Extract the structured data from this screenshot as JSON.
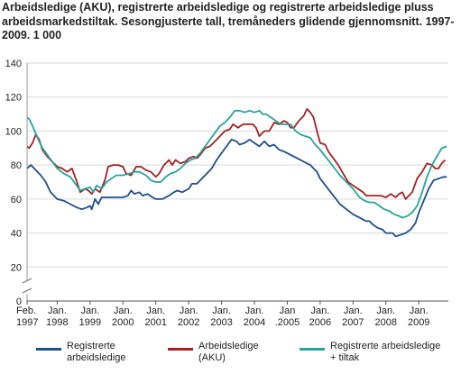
{
  "chart_data": {
    "type": "line",
    "title": "Arbeidsledige (AKU), registrerte arbeidsledige og registrerte arbeidsledige pluss arbeidsmarkedstiltak. Sesongjusterte tall, tremåneders glidende gjennomsnitt. 1997-2009. 1 000",
    "ylim": [
      0,
      140
    ],
    "yticks": [
      0,
      20,
      40,
      60,
      80,
      100,
      120,
      140
    ],
    "xlim": [
      1997.083,
      2009.9
    ],
    "xticks": [
      {
        "x": 1997.083,
        "line1": "Feb.",
        "line2": "1997"
      },
      {
        "x": 1998,
        "line1": "Jan.",
        "line2": "1998"
      },
      {
        "x": 1999,
        "line1": "Jan.",
        "line2": "1999"
      },
      {
        "x": 2000,
        "line1": "Jan.",
        "line2": "2000"
      },
      {
        "x": 2001,
        "line1": "Jan.",
        "line2": "2001"
      },
      {
        "x": 2002,
        "line1": "Jan.",
        "line2": "2002"
      },
      {
        "x": 2003,
        "line1": "Jan.",
        "line2": "2003"
      },
      {
        "x": 2004,
        "line1": "Jan.",
        "line2": "2004"
      },
      {
        "x": 2005,
        "line1": "Jan",
        "line2": ".2005"
      },
      {
        "x": 2006,
        "line1": "Jan.",
        "line2": "2006"
      },
      {
        "x": 2007,
        "line1": "Jan.",
        "line2": "2007"
      },
      {
        "x": 2008,
        "line1": "Jan.",
        "line2": "2008"
      },
      {
        "x": 2009,
        "line1": "Jan.",
        "line2": "2009"
      }
    ],
    "grid": true,
    "legend_position": "bottom",
    "series": [
      {
        "name_line1": "Registrerte",
        "name_line2": "arbeidsledige",
        "color": "#1f4e8c",
        "points": [
          [
            1997.083,
            78
          ],
          [
            1997.2,
            80
          ],
          [
            1997.35,
            77
          ],
          [
            1997.5,
            74
          ],
          [
            1997.65,
            70
          ],
          [
            1997.8,
            64
          ],
          [
            1998.0,
            60
          ],
          [
            1998.2,
            59
          ],
          [
            1998.4,
            57
          ],
          [
            1998.6,
            55
          ],
          [
            1998.75,
            54
          ],
          [
            1998.9,
            55
          ],
          [
            1999.0,
            56
          ],
          [
            1999.05,
            54
          ],
          [
            1999.15,
            60
          ],
          [
            1999.25,
            57
          ],
          [
            1999.35,
            61
          ],
          [
            1999.5,
            61
          ],
          [
            1999.7,
            61
          ],
          [
            1999.9,
            61
          ],
          [
            2000.0,
            61
          ],
          [
            2000.15,
            62
          ],
          [
            2000.25,
            65
          ],
          [
            2000.35,
            63
          ],
          [
            2000.5,
            64
          ],
          [
            2000.6,
            62
          ],
          [
            2000.75,
            63
          ],
          [
            2000.9,
            61
          ],
          [
            2001.0,
            60
          ],
          [
            2001.2,
            60
          ],
          [
            2001.4,
            62
          ],
          [
            2001.55,
            64
          ],
          [
            2001.65,
            65
          ],
          [
            2001.8,
            64
          ],
          [
            2002.0,
            66
          ],
          [
            2002.1,
            69
          ],
          [
            2002.25,
            69
          ],
          [
            2002.4,
            72
          ],
          [
            2002.55,
            75
          ],
          [
            2002.7,
            78
          ],
          [
            2002.85,
            83
          ],
          [
            2003.0,
            87
          ],
          [
            2003.15,
            91
          ],
          [
            2003.3,
            95
          ],
          [
            2003.45,
            94
          ],
          [
            2003.55,
            92
          ],
          [
            2003.7,
            93
          ],
          [
            2003.85,
            95
          ],
          [
            2004.0,
            93
          ],
          [
            2004.15,
            91
          ],
          [
            2004.3,
            94
          ],
          [
            2004.45,
            91
          ],
          [
            2004.6,
            92
          ],
          [
            2004.75,
            89
          ],
          [
            2004.9,
            88
          ],
          [
            2005.1,
            86
          ],
          [
            2005.3,
            84
          ],
          [
            2005.5,
            82
          ],
          [
            2005.7,
            80
          ],
          [
            2005.9,
            76
          ],
          [
            2006.0,
            72
          ],
          [
            2006.2,
            67
          ],
          [
            2006.4,
            62
          ],
          [
            2006.6,
            57
          ],
          [
            2006.8,
            54
          ],
          [
            2007.0,
            51
          ],
          [
            2007.2,
            49
          ],
          [
            2007.4,
            47
          ],
          [
            2007.5,
            47
          ],
          [
            2007.6,
            45
          ],
          [
            2007.75,
            43
          ],
          [
            2007.9,
            42
          ],
          [
            2008.0,
            40
          ],
          [
            2008.1,
            40
          ],
          [
            2008.2,
            40
          ],
          [
            2008.3,
            38
          ],
          [
            2008.45,
            39
          ],
          [
            2008.6,
            40
          ],
          [
            2008.75,
            42
          ],
          [
            2008.9,
            46
          ],
          [
            2009.0,
            52
          ],
          [
            2009.15,
            59
          ],
          [
            2009.3,
            66
          ],
          [
            2009.45,
            71
          ],
          [
            2009.6,
            72
          ],
          [
            2009.75,
            73
          ],
          [
            2009.85,
            73
          ]
        ]
      },
      {
        "name_line1": "Arbeidsledige",
        "name_line2": "(AKU)",
        "color": "#a32121",
        "points": [
          [
            1997.083,
            91
          ],
          [
            1997.15,
            90
          ],
          [
            1997.25,
            93
          ],
          [
            1997.35,
            98
          ],
          [
            1997.45,
            95
          ],
          [
            1997.55,
            89
          ],
          [
            1997.7,
            85
          ],
          [
            1997.85,
            82
          ],
          [
            1998.0,
            79
          ],
          [
            1998.15,
            78
          ],
          [
            1998.3,
            76
          ],
          [
            1998.45,
            78
          ],
          [
            1998.6,
            70
          ],
          [
            1998.7,
            64
          ],
          [
            1998.85,
            66
          ],
          [
            1998.95,
            65
          ],
          [
            1999.05,
            63
          ],
          [
            1999.15,
            66
          ],
          [
            1999.3,
            64
          ],
          [
            1999.45,
            71
          ],
          [
            1999.55,
            79
          ],
          [
            1999.7,
            80
          ],
          [
            1999.85,
            80
          ],
          [
            2000.0,
            79
          ],
          [
            2000.1,
            75
          ],
          [
            2000.25,
            74
          ],
          [
            2000.4,
            79
          ],
          [
            2000.55,
            79
          ],
          [
            2000.7,
            77
          ],
          [
            2000.85,
            76
          ],
          [
            2001.0,
            73
          ],
          [
            2001.1,
            75
          ],
          [
            2001.25,
            80
          ],
          [
            2001.4,
            83
          ],
          [
            2001.5,
            80
          ],
          [
            2001.6,
            83
          ],
          [
            2001.75,
            81
          ],
          [
            2001.9,
            82
          ],
          [
            2002.0,
            84
          ],
          [
            2002.15,
            85
          ],
          [
            2002.25,
            84
          ],
          [
            2002.35,
            86
          ],
          [
            2002.5,
            90
          ],
          [
            2002.65,
            91
          ],
          [
            2002.8,
            94
          ],
          [
            2002.95,
            97
          ],
          [
            2003.1,
            100
          ],
          [
            2003.25,
            101
          ],
          [
            2003.35,
            104
          ],
          [
            2003.5,
            102
          ],
          [
            2003.65,
            104
          ],
          [
            2003.8,
            104
          ],
          [
            2003.95,
            104
          ],
          [
            2004.05,
            102
          ],
          [
            2004.15,
            97
          ],
          [
            2004.3,
            100
          ],
          [
            2004.45,
            100
          ],
          [
            2004.6,
            105
          ],
          [
            2004.75,
            104
          ],
          [
            2004.9,
            106
          ],
          [
            2005.0,
            105
          ],
          [
            2005.1,
            102
          ],
          [
            2005.2,
            102
          ],
          [
            2005.35,
            106
          ],
          [
            2005.5,
            109
          ],
          [
            2005.6,
            113
          ],
          [
            2005.7,
            111
          ],
          [
            2005.8,
            108
          ],
          [
            2005.9,
            100
          ],
          [
            2006.0,
            93
          ],
          [
            2006.15,
            92
          ],
          [
            2006.25,
            88
          ],
          [
            2006.4,
            84
          ],
          [
            2006.55,
            80
          ],
          [
            2006.7,
            75
          ],
          [
            2006.85,
            70
          ],
          [
            2007.0,
            68
          ],
          [
            2007.15,
            66
          ],
          [
            2007.3,
            64
          ],
          [
            2007.4,
            62
          ],
          [
            2007.55,
            62
          ],
          [
            2007.7,
            62
          ],
          [
            2007.85,
            62
          ],
          [
            2008.0,
            61
          ],
          [
            2008.15,
            63
          ],
          [
            2008.3,
            61
          ],
          [
            2008.4,
            63
          ],
          [
            2008.5,
            64
          ],
          [
            2008.6,
            60
          ],
          [
            2008.7,
            62
          ],
          [
            2008.8,
            64
          ],
          [
            2008.95,
            72
          ],
          [
            2009.1,
            76
          ],
          [
            2009.25,
            81
          ],
          [
            2009.4,
            80
          ],
          [
            2009.5,
            78
          ],
          [
            2009.6,
            78
          ],
          [
            2009.7,
            81
          ],
          [
            2009.8,
            83
          ]
        ]
      },
      {
        "name_line1": "Registrerte arbeidsledige",
        "name_line2": "+ tiltak",
        "color": "#27a39a",
        "points": [
          [
            1997.083,
            108
          ],
          [
            1997.15,
            107
          ],
          [
            1997.25,
            103
          ],
          [
            1997.4,
            96
          ],
          [
            1997.55,
            90
          ],
          [
            1997.7,
            86
          ],
          [
            1997.85,
            82
          ],
          [
            1998.0,
            78
          ],
          [
            1998.2,
            75
          ],
          [
            1998.4,
            73
          ],
          [
            1998.55,
            69
          ],
          [
            1998.7,
            65
          ],
          [
            1998.85,
            66
          ],
          [
            1999.0,
            67
          ],
          [
            1999.1,
            64
          ],
          [
            1999.2,
            68
          ],
          [
            1999.35,
            66
          ],
          [
            1999.5,
            70
          ],
          [
            1999.65,
            72
          ],
          [
            1999.8,
            74
          ],
          [
            2000.0,
            74
          ],
          [
            2000.2,
            75
          ],
          [
            2000.35,
            76
          ],
          [
            2000.5,
            76
          ],
          [
            2000.7,
            74
          ],
          [
            2000.85,
            71
          ],
          [
            2001.0,
            70
          ],
          [
            2001.15,
            70
          ],
          [
            2001.3,
            73
          ],
          [
            2001.45,
            75
          ],
          [
            2001.6,
            76
          ],
          [
            2001.75,
            78
          ],
          [
            2001.9,
            81
          ],
          [
            2002.05,
            83
          ],
          [
            2002.2,
            84
          ],
          [
            2002.35,
            87
          ],
          [
            2002.5,
            91
          ],
          [
            2002.65,
            95
          ],
          [
            2002.8,
            99
          ],
          [
            2002.95,
            103
          ],
          [
            2003.1,
            105
          ],
          [
            2003.25,
            108
          ],
          [
            2003.4,
            112
          ],
          [
            2003.55,
            112
          ],
          [
            2003.7,
            111
          ],
          [
            2003.85,
            112
          ],
          [
            2004.0,
            111
          ],
          [
            2004.15,
            112
          ],
          [
            2004.25,
            110
          ],
          [
            2004.35,
            110
          ],
          [
            2004.5,
            108
          ],
          [
            2004.65,
            106
          ],
          [
            2004.8,
            104
          ],
          [
            2004.95,
            104
          ],
          [
            2005.1,
            104
          ],
          [
            2005.25,
            100
          ],
          [
            2005.4,
            98
          ],
          [
            2005.55,
            97
          ],
          [
            2005.7,
            96
          ],
          [
            2005.85,
            92
          ],
          [
            2006.0,
            89
          ],
          [
            2006.2,
            84
          ],
          [
            2006.4,
            79
          ],
          [
            2006.6,
            74
          ],
          [
            2006.8,
            70
          ],
          [
            2007.0,
            66
          ],
          [
            2007.2,
            61
          ],
          [
            2007.35,
            59
          ],
          [
            2007.5,
            58
          ],
          [
            2007.65,
            58
          ],
          [
            2007.8,
            56
          ],
          [
            2007.95,
            54
          ],
          [
            2008.1,
            53
          ],
          [
            2008.25,
            51
          ],
          [
            2008.4,
            50
          ],
          [
            2008.5,
            49
          ],
          [
            2008.65,
            50
          ],
          [
            2008.8,
            52
          ],
          [
            2008.95,
            56
          ],
          [
            2009.1,
            64
          ],
          [
            2009.25,
            73
          ],
          [
            2009.4,
            80
          ],
          [
            2009.55,
            85
          ],
          [
            2009.7,
            90
          ],
          [
            2009.85,
            91
          ]
        ]
      }
    ]
  }
}
